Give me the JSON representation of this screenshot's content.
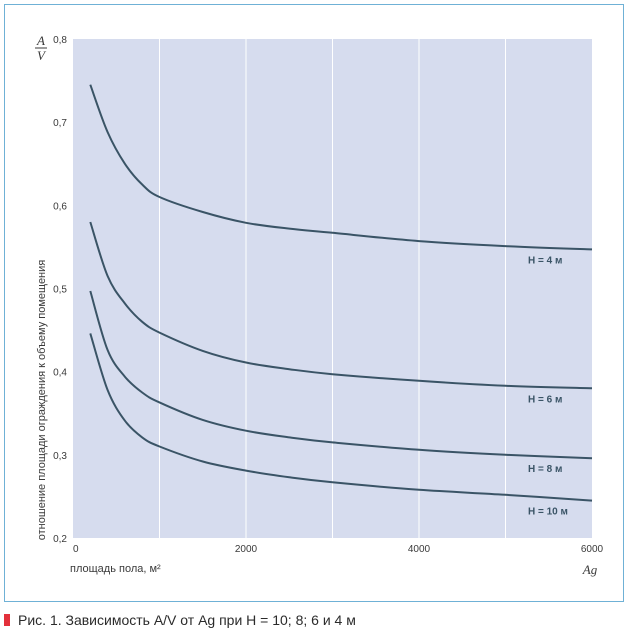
{
  "colors": {
    "plot_bg": "#d6dcee",
    "grid": "#ffffff",
    "curve": "#3a5466",
    "text": "#3a3a3a",
    "caption_marker": "#e3313b"
  },
  "caption": "Рис. 1. Зависимость A/V от Ag при H = 10; 8; 6 и 4 м",
  "chart_data": {
    "type": "line",
    "title": "",
    "ylabel_fraction": {
      "numerator": "A",
      "denominator": "V"
    },
    "ylabel": "отношение площади ограждения к объему помещения",
    "xlabel": "площадь пола, м²",
    "xlabel_symbol": "Ag",
    "xlim": [
      0,
      6000
    ],
    "ylim": [
      0.2,
      0.8
    ],
    "x_ticks": [
      0,
      2000,
      4000,
      6000
    ],
    "x_tick_labels": [
      "0",
      "2000",
      "4000",
      "6000"
    ],
    "x_grid": [
      1000,
      2000,
      3000,
      4000,
      5000
    ],
    "y_ticks": [
      0.2,
      0.3,
      0.4,
      0.5,
      0.6,
      0.7,
      0.8
    ],
    "y_tick_labels": [
      "0,2",
      "0,3",
      "0,4",
      "0,5",
      "0,6",
      "0,7",
      "0,8"
    ],
    "grid": true,
    "series": [
      {
        "name": "H = 4 м",
        "x": [
          200,
          400,
          600,
          800,
          1000,
          1500,
          2000,
          2500,
          3000,
          4000,
          5000,
          6000
        ],
        "y": [
          0.745,
          0.688,
          0.65,
          0.625,
          0.61,
          0.592,
          0.579,
          0.572,
          0.567,
          0.557,
          0.551,
          0.547
        ]
      },
      {
        "name": "H = 6 м",
        "x": [
          200,
          400,
          600,
          800,
          1000,
          1500,
          2000,
          2500,
          3000,
          4000,
          5000,
          6000
        ],
        "y": [
          0.58,
          0.515,
          0.482,
          0.46,
          0.447,
          0.425,
          0.411,
          0.403,
          0.397,
          0.389,
          0.383,
          0.38
        ]
      },
      {
        "name": "H = 8 м",
        "x": [
          200,
          400,
          600,
          800,
          1000,
          1500,
          2000,
          2500,
          3000,
          4000,
          5000,
          6000
        ],
        "y": [
          0.497,
          0.426,
          0.394,
          0.375,
          0.363,
          0.342,
          0.329,
          0.321,
          0.315,
          0.306,
          0.3,
          0.296
        ]
      },
      {
        "name": "H = 10 м",
        "x": [
          200,
          400,
          600,
          800,
          1000,
          1500,
          2000,
          2500,
          3000,
          4000,
          5000,
          6000
        ],
        "y": [
          0.446,
          0.378,
          0.341,
          0.321,
          0.31,
          0.292,
          0.281,
          0.273,
          0.267,
          0.258,
          0.252,
          0.245
        ]
      }
    ]
  }
}
